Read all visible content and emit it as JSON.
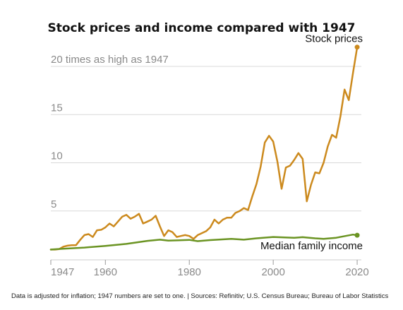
{
  "chart_data": {
    "type": "line",
    "title": "Stock prices and income compared with 1947",
    "xlabel": "",
    "ylabel": "",
    "xlim": [
      1947,
      2021
    ],
    "ylim": [
      0,
      21
    ],
    "grid": true,
    "x_ticks": [
      "1947",
      "1960",
      "1980",
      "2000",
      "2020"
    ],
    "y_ticks": [
      {
        "value": 5,
        "label": "5"
      },
      {
        "value": 10,
        "label": "10"
      },
      {
        "value": 15,
        "label": "15"
      },
      {
        "value": 20,
        "label": "20 times as high as 1947"
      }
    ],
    "series": [
      {
        "name": "Stock prices",
        "color": "#cc8a1e",
        "points": [
          [
            1947,
            1.0
          ],
          [
            1948,
            1.0
          ],
          [
            1949,
            1.05
          ],
          [
            1950,
            1.3
          ],
          [
            1951,
            1.4
          ],
          [
            1952,
            1.45
          ],
          [
            1953,
            1.45
          ],
          [
            1954,
            2.0
          ],
          [
            1955,
            2.5
          ],
          [
            1956,
            2.6
          ],
          [
            1957,
            2.3
          ],
          [
            1958,
            3.0
          ],
          [
            1959,
            3.05
          ],
          [
            1960,
            3.3
          ],
          [
            1961,
            3.7
          ],
          [
            1962,
            3.4
          ],
          [
            1963,
            3.9
          ],
          [
            1964,
            4.4
          ],
          [
            1965,
            4.6
          ],
          [
            1966,
            4.2
          ],
          [
            1967,
            4.4
          ],
          [
            1968,
            4.7
          ],
          [
            1969,
            3.7
          ],
          [
            1970,
            3.9
          ],
          [
            1971,
            4.1
          ],
          [
            1972,
            4.5
          ],
          [
            1973,
            3.4
          ],
          [
            1974,
            2.4
          ],
          [
            1975,
            3.0
          ],
          [
            1976,
            2.8
          ],
          [
            1977,
            2.3
          ],
          [
            1978,
            2.4
          ],
          [
            1979,
            2.5
          ],
          [
            1980,
            2.4
          ],
          [
            1981,
            2.1
          ],
          [
            1982,
            2.5
          ],
          [
            1983,
            2.7
          ],
          [
            1984,
            2.9
          ],
          [
            1985,
            3.3
          ],
          [
            1986,
            4.1
          ],
          [
            1987,
            3.7
          ],
          [
            1988,
            4.1
          ],
          [
            1989,
            4.3
          ],
          [
            1990,
            4.3
          ],
          [
            1991,
            4.8
          ],
          [
            1992,
            5.0
          ],
          [
            1993,
            5.3
          ],
          [
            1994,
            5.1
          ],
          [
            1995,
            6.5
          ],
          [
            1996,
            7.8
          ],
          [
            1997,
            9.6
          ],
          [
            1998,
            12.1
          ],
          [
            1999,
            12.8
          ],
          [
            2000,
            12.2
          ],
          [
            2001,
            10.1
          ],
          [
            2002,
            7.3
          ],
          [
            2003,
            9.5
          ],
          [
            2004,
            9.7
          ],
          [
            2005,
            10.3
          ],
          [
            2006,
            11.0
          ],
          [
            2007,
            10.4
          ],
          [
            2008,
            6.0
          ],
          [
            2009,
            7.7
          ],
          [
            2010,
            9.0
          ],
          [
            2011,
            8.9
          ],
          [
            2012,
            10.0
          ],
          [
            2013,
            11.7
          ],
          [
            2014,
            12.9
          ],
          [
            2015,
            12.6
          ],
          [
            2016,
            14.8
          ],
          [
            2017,
            17.6
          ],
          [
            2018,
            16.5
          ],
          [
            2019,
            19.3
          ],
          [
            2020,
            22.0
          ]
        ]
      },
      {
        "name": "Median family income",
        "color": "#6b9423",
        "points": [
          [
            1947,
            1.0
          ],
          [
            1950,
            1.08
          ],
          [
            1955,
            1.2
          ],
          [
            1960,
            1.38
          ],
          [
            1965,
            1.58
          ],
          [
            1970,
            1.9
          ],
          [
            1973,
            2.02
          ],
          [
            1975,
            1.92
          ],
          [
            1980,
            2.0
          ],
          [
            1982,
            1.87
          ],
          [
            1985,
            1.98
          ],
          [
            1990,
            2.1
          ],
          [
            1993,
            2.02
          ],
          [
            1996,
            2.16
          ],
          [
            2000,
            2.3
          ],
          [
            2005,
            2.22
          ],
          [
            2007,
            2.28
          ],
          [
            2010,
            2.16
          ],
          [
            2012,
            2.1
          ],
          [
            2015,
            2.22
          ],
          [
            2019,
            2.55
          ],
          [
            2020,
            2.48
          ]
        ]
      }
    ]
  },
  "source_note": "Data is adjusted for inflation; 1947 numbers are set to one. | Sources: Refinitiv; U.S. Census Bureau; Bureau of Labor Statistics"
}
